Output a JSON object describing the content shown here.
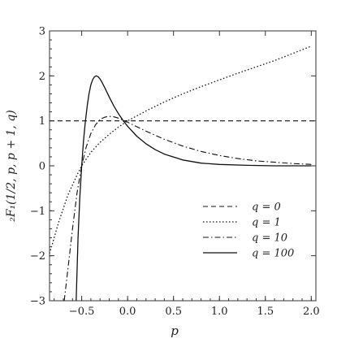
{
  "chart_data": {
    "type": "line",
    "title": "",
    "xlabel": "p",
    "ylabel": "₂F₁(1/2, p, p + 1, q)",
    "xlim": [
      -0.85,
      2.05
    ],
    "ylim": [
      -3,
      3
    ],
    "grid": false,
    "legend_position": "bottom-right",
    "x_ticks": [
      -0.5,
      0.0,
      0.5,
      1.0,
      1.5,
      2.0
    ],
    "x_tick_labels": [
      "−0.5",
      "0.0",
      "0.5",
      "1.0",
      "1.5",
      "2.0"
    ],
    "y_ticks": [
      -3,
      -2,
      -1,
      0,
      1,
      2,
      3
    ],
    "y_tick_labels": [
      "−3",
      "−2",
      "−1",
      "0",
      "1",
      "2",
      "3"
    ],
    "series": [
      {
        "name": "q = 0",
        "dash": "dashed",
        "x": [
          -0.85,
          2.05
        ],
        "y": [
          1,
          1
        ]
      },
      {
        "name": "q = 1",
        "dash": "dotted",
        "x": [
          -0.85,
          -0.75,
          -0.65,
          -0.55,
          -0.5,
          -0.4,
          -0.3,
          -0.2,
          -0.1,
          0.0,
          0.2,
          0.4,
          0.6,
          0.8,
          1.0,
          1.2,
          1.4,
          1.6,
          1.8,
          2.0
        ],
        "y": [
          -1.95,
          -1.25,
          -0.65,
          -0.2,
          0.0,
          0.3,
          0.52,
          0.7,
          0.86,
          1.0,
          1.22,
          1.42,
          1.6,
          1.76,
          1.91,
          2.06,
          2.2,
          2.34,
          2.5,
          2.66
        ]
      },
      {
        "name": "q = 10",
        "dash": "dashdot",
        "x": [
          -0.69,
          -0.65,
          -0.6,
          -0.55,
          -0.5,
          -0.45,
          -0.4,
          -0.35,
          -0.3,
          -0.25,
          -0.2,
          -0.15,
          -0.1,
          0.0,
          0.1,
          0.2,
          0.4,
          0.6,
          0.8,
          1.0,
          1.2,
          1.4,
          1.6,
          1.8,
          2.0
        ],
        "y": [
          -3.0,
          -2.3,
          -1.4,
          -0.6,
          0.0,
          0.42,
          0.72,
          0.91,
          1.03,
          1.08,
          1.1,
          1.09,
          1.06,
          0.97,
          0.87,
          0.77,
          0.59,
          0.44,
          0.32,
          0.23,
          0.16,
          0.11,
          0.08,
          0.05,
          0.03
        ]
      },
      {
        "name": "q = 100",
        "dash": "solid",
        "x": [
          -0.56,
          -0.54,
          -0.52,
          -0.5,
          -0.48,
          -0.46,
          -0.44,
          -0.42,
          -0.4,
          -0.38,
          -0.36,
          -0.34,
          -0.32,
          -0.3,
          -0.28,
          -0.25,
          -0.2,
          -0.15,
          -0.1,
          -0.05,
          0.0,
          0.1,
          0.2,
          0.3,
          0.4,
          0.6,
          0.8,
          1.0,
          1.3,
          1.6,
          2.0
        ],
        "y": [
          -3.0,
          -1.6,
          -0.7,
          0.0,
          0.55,
          0.98,
          1.33,
          1.6,
          1.8,
          1.92,
          1.98,
          2.0,
          1.98,
          1.93,
          1.86,
          1.74,
          1.53,
          1.33,
          1.16,
          1.01,
          0.88,
          0.66,
          0.49,
          0.36,
          0.26,
          0.13,
          0.06,
          0.03,
          0.01,
          0.0,
          0.0
        ]
      }
    ]
  }
}
